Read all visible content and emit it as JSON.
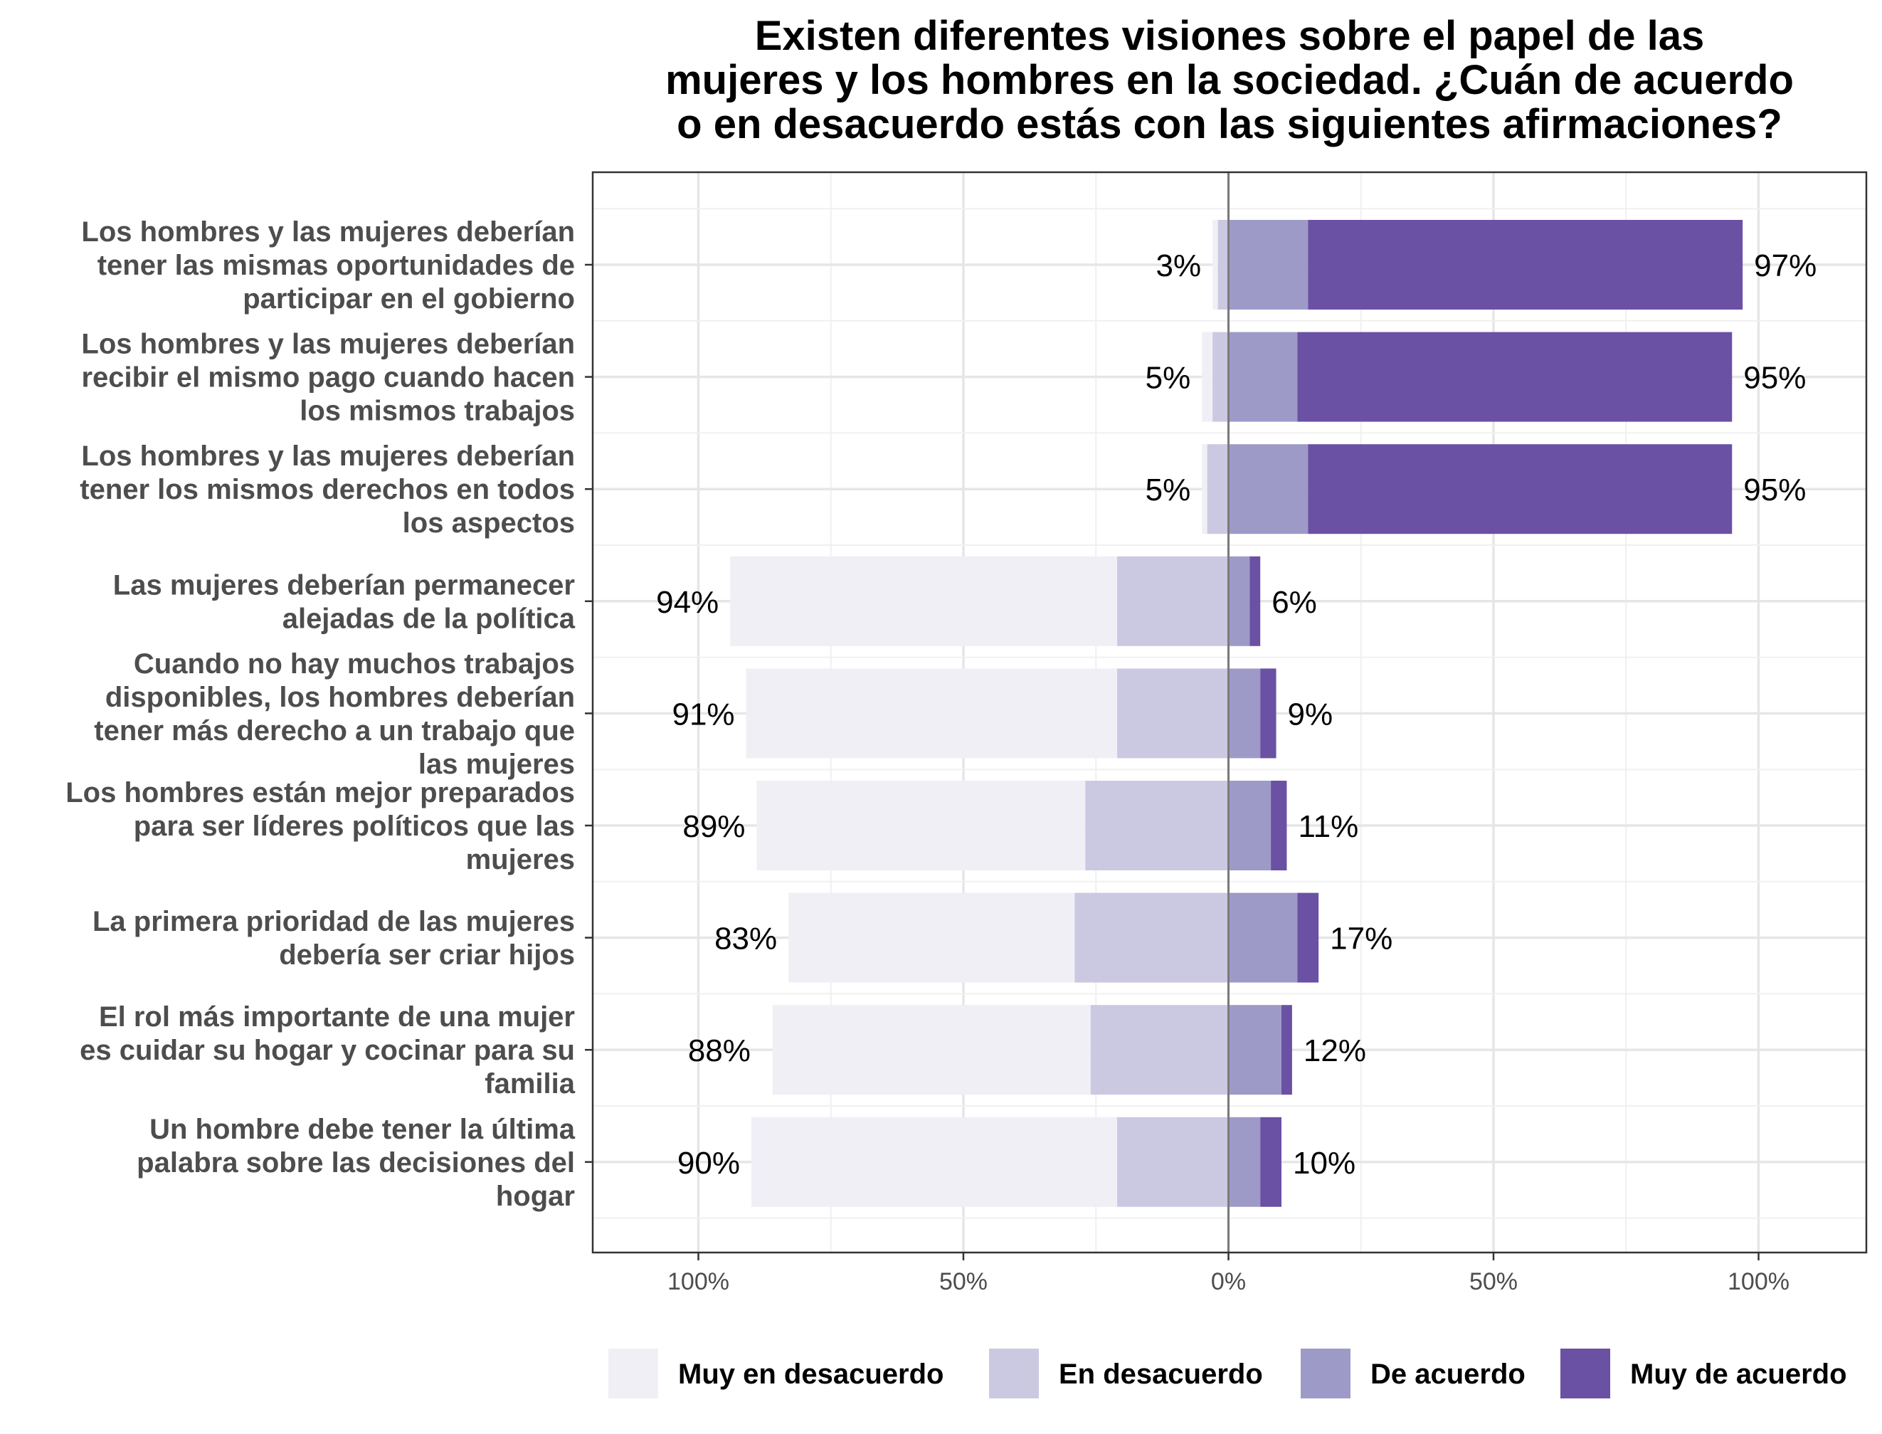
{
  "chart_data": {
    "type": "bar",
    "orientation": "horizontal",
    "stacked": "diverging",
    "title": "Existen diferentes visiones sobre el papel de las mujeres y los hombres en la sociedad. ¿Cuán de acuerdo o en desacuerdo estás con las siguientes afirmaciones?",
    "title_lines": [
      "Existen diferentes visiones sobre el papel de las",
      "mujeres y los hombres en la sociedad. ¿Cuán de acuerdo",
      "o en desacuerdo estás con las siguientes afirmaciones?"
    ],
    "xlabel": "",
    "ylabel": "",
    "xlim": [
      -100,
      100
    ],
    "x_ticks": [
      -100,
      -50,
      0,
      50,
      100
    ],
    "x_tick_labels": [
      "100%",
      "50%",
      "0%",
      "50%",
      "100%"
    ],
    "grid": true,
    "legend_position": "bottom",
    "legend": [
      "Muy en desacuerdo",
      "En desacuerdo",
      "De acuerdo",
      "Muy de acuerdo"
    ],
    "colors": {
      "Muy en desacuerdo": "#f0eff6",
      "En desacuerdo": "#cbc9e2",
      "De acuerdo": "#9e9ac8",
      "Muy de acuerdo": "#6a51a3"
    },
    "categories": [
      "Los hombres y las mujeres deberían tener las mismas oportunidades de participar en el gobierno",
      "Los hombres y las mujeres deberían recibir el mismo pago cuando hacen los mismos trabajos",
      "Los hombres y las mujeres deberían tener los mismos derechos en todos los aspectos",
      "Las mujeres deberían permanecer alejadas de la política",
      "Cuando no hay muchos trabajos disponibles, los hombres deberían tener más derecho a un trabajo que las mujeres",
      "Los hombres están mejor preparados para ser líderes políticos que las mujeres",
      "La primera prioridad de las mujeres debería ser criar hijos",
      "El rol más importante de una mujer es cuidar su hogar y cocinar para su familia",
      "Un hombre debe tener la última palabra sobre las decisiones del hogar"
    ],
    "category_lines": [
      [
        "Los hombres y las mujeres deberían",
        "tener las mismas oportunidades de",
        "participar en el gobierno"
      ],
      [
        "Los hombres y las mujeres deberían",
        "recibir el mismo pago cuando hacen",
        "los mismos trabajos"
      ],
      [
        "Los hombres y las mujeres deberían",
        "tener los mismos derechos en todos",
        "los aspectos"
      ],
      [
        "Las mujeres deberían permanecer",
        "alejadas de la política"
      ],
      [
        "Cuando no hay muchos trabajos",
        "disponibles, los hombres deberían",
        "tener más derecho a un trabajo que",
        "las mujeres"
      ],
      [
        "Los hombres están mejor preparados",
        "para ser líderes políticos que las",
        "mujeres"
      ],
      [
        "La primera prioridad de las mujeres",
        "debería ser criar hijos"
      ],
      [
        "El rol más importante de una mujer",
        "es cuidar su hogar y cocinar para su",
        "familia"
      ],
      [
        "Un hombre debe tener la última",
        "palabra sobre las decisiones del",
        "hogar"
      ]
    ],
    "series": [
      {
        "name": "Muy en desacuerdo",
        "values": [
          1,
          2,
          1,
          73,
          70,
          62,
          54,
          60,
          69
        ]
      },
      {
        "name": "En desacuerdo",
        "values": [
          2,
          3,
          4,
          21,
          21,
          27,
          29,
          26,
          21
        ]
      },
      {
        "name": "De acuerdo",
        "values": [
          15,
          13,
          15,
          4,
          6,
          8,
          13,
          10,
          6
        ]
      },
      {
        "name": "Muy de acuerdo",
        "values": [
          82,
          82,
          80,
          2,
          3,
          3,
          4,
          2,
          4
        ]
      }
    ],
    "disagree_totals": [
      3,
      5,
      5,
      94,
      91,
      89,
      83,
      88,
      90
    ],
    "agree_totals": [
      97,
      95,
      95,
      6,
      9,
      11,
      17,
      12,
      10
    ],
    "disagree_labels": [
      "3%",
      "5%",
      "5%",
      "94%",
      "91%",
      "89%",
      "83%",
      "88%",
      "90%"
    ],
    "agree_labels": [
      "97%",
      "95%",
      "95%",
      "6%",
      "9%",
      "11%",
      "17%",
      "12%",
      "10%"
    ]
  }
}
